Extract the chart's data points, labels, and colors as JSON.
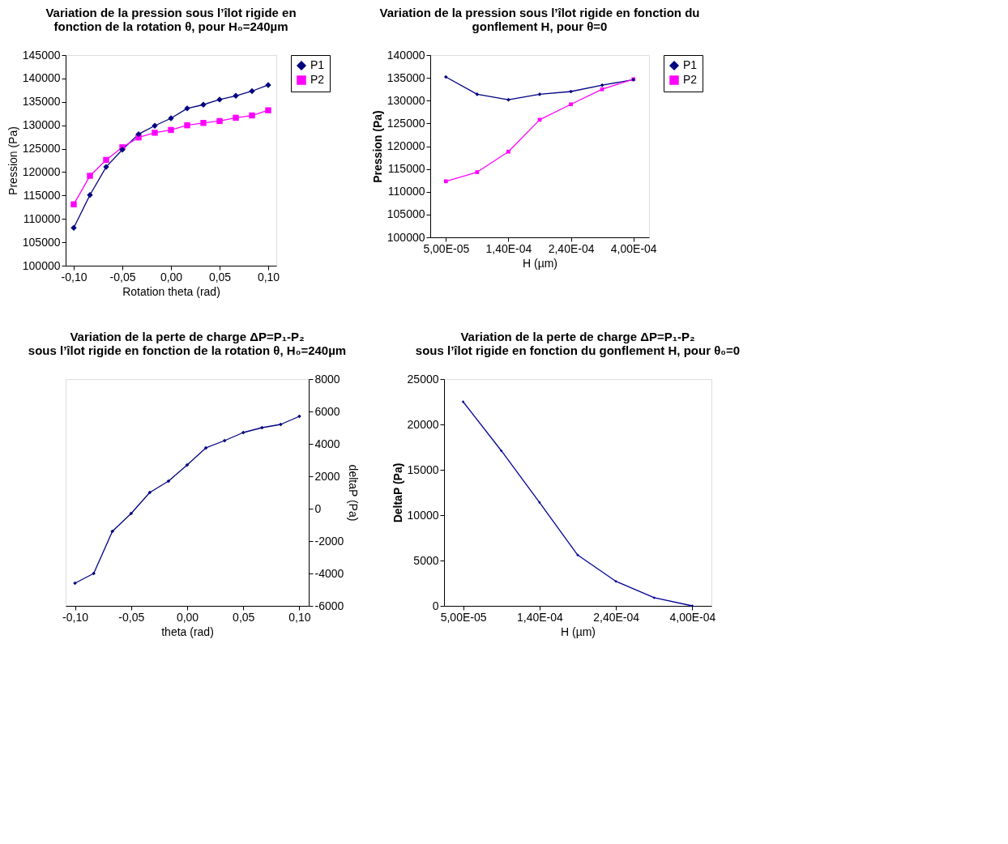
{
  "chart_data": [
    {
      "type": "line",
      "title": "Variation de la pression sous l’îlot rigide en\nfonction de la rotation θ, pour H₀=240µm",
      "xlabel": "Rotation theta (rad)",
      "ylabel": "Pression (Pa)",
      "categories": [
        "-0,10",
        null,
        null,
        "-0,05",
        null,
        null,
        "0,00",
        null,
        null,
        "0,05",
        null,
        null,
        "0,10"
      ],
      "series": [
        {
          "name": "P1",
          "color": "#000080",
          "marker": "diamond",
          "values": [
            108100,
            115100,
            121100,
            124800,
            128100,
            129900,
            131500,
            133600,
            134400,
            135500,
            136300,
            137300,
            138600
          ]
        },
        {
          "name": "P2",
          "color": "#ff00ff",
          "marker": "square",
          "values": [
            113100,
            119200,
            122600,
            125300,
            127400,
            128400,
            129000,
            130000,
            130500,
            130900,
            131600,
            132100,
            133200
          ]
        }
      ],
      "ylim": [
        100000,
        145000
      ],
      "yticks": [
        100000,
        105000,
        110000,
        115000,
        120000,
        125000,
        130000,
        135000,
        140000,
        145000
      ],
      "grid": false,
      "legend": "right",
      "line_style": "solid"
    },
    {
      "type": "line",
      "title": "Variation de la pression sous l’îlot rigide en fonction du\ngonflement H, pour θ=0",
      "xlabel": "H (µm)",
      "ylabel": "Pression (Pa)",
      "categories": [
        "5,00E-05",
        null,
        "1,40E-04",
        null,
        "2,40E-04",
        null,
        "4,00E-04"
      ],
      "series": [
        {
          "name": "P1",
          "color": "#000080",
          "marker": "diamond",
          "values": [
            135200,
            131400,
            130200,
            131400,
            132000,
            133400,
            134600
          ]
        },
        {
          "name": "P2",
          "color": "#ff00ff",
          "marker": "square",
          "values": [
            112300,
            114300,
            118800,
            125800,
            129200,
            132500,
            134700
          ]
        }
      ],
      "ylim": [
        100000,
        140000
      ],
      "yticks": [
        100000,
        105000,
        110000,
        115000,
        120000,
        125000,
        130000,
        135000,
        140000
      ],
      "grid": false,
      "legend": "right",
      "line_style": "solid"
    },
    {
      "type": "line",
      "title": "Variation de la perte de charge ΔP=P₁-P₂\nsous l’îlot rigide en fonction de la rotation θ, H₀=240µm",
      "xlabel": "theta (rad)",
      "y2label": "deltaP (Pa)",
      "categories": [
        "-0,10",
        null,
        null,
        "-0,05",
        null,
        null,
        "0,00",
        null,
        null,
        "0,05",
        null,
        null,
        "0,10"
      ],
      "series": [
        {
          "color": "#000080",
          "marker": "diamond",
          "axis": "y2",
          "values": [
            -4600,
            -4000,
            -1400,
            -300,
            1000,
            1700,
            2700,
            3750,
            4200,
            4700,
            5000,
            5200,
            5700
          ]
        }
      ],
      "y2lim": [
        -6000,
        8000
      ],
      "y2ticks": [
        -6000,
        -4000,
        -2000,
        0,
        2000,
        4000,
        6000,
        8000
      ],
      "grid": false,
      "legend": false,
      "line_style": "solid"
    },
    {
      "type": "line",
      "title": "Variation de la perte de charge ΔP=P₁-P₂\nsous l’îlot rigide en fonction du gonflement H, pour  θ₀=0",
      "xlabel": "H (µm)",
      "ylabel": "DeltaP (Pa)",
      "categories": [
        "5,00E-05",
        null,
        "1,40E-04",
        null,
        "2,40E-04",
        null,
        "4,00E-04"
      ],
      "series": [
        {
          "color": "#000099",
          "marker": "diamond",
          "values": [
            22500,
            17100,
            11400,
            5600,
            2700,
            900,
            0
          ]
        }
      ],
      "ylim": [
        0,
        25000
      ],
      "yticks": [
        0,
        5000,
        10000,
        15000,
        20000,
        25000
      ],
      "grid": false,
      "legend": false,
      "line_style": "solid"
    }
  ]
}
